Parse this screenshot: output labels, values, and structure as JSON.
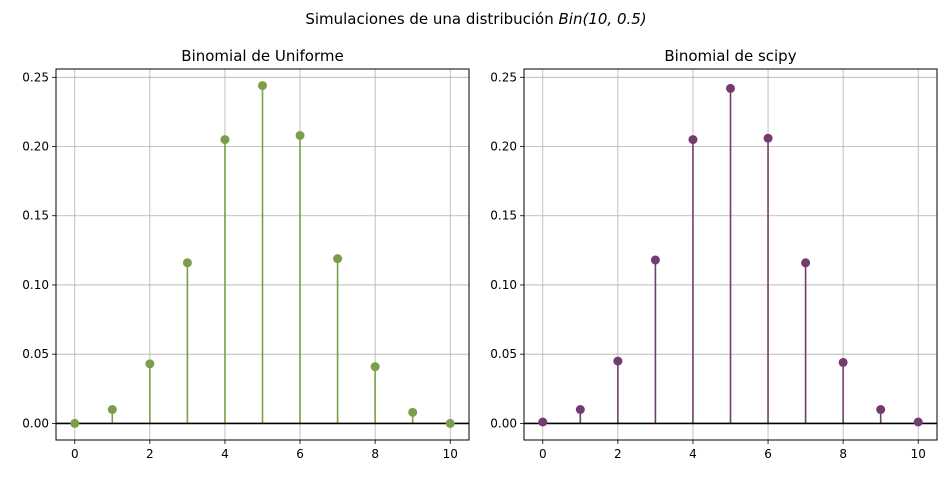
{
  "suptitle": {
    "prefix": "Simulaciones de una distribución ",
    "math": "Bin(10, 0.5)"
  },
  "chart_data": [
    {
      "type": "stem",
      "title": "Binomial de Uniforme",
      "color": "#7a9e4a",
      "x": [
        0,
        1,
        2,
        3,
        4,
        5,
        6,
        7,
        8,
        9,
        10
      ],
      "y": [
        0.0,
        0.01,
        0.043,
        0.116,
        0.205,
        0.244,
        0.208,
        0.119,
        0.041,
        0.008,
        0.0
      ],
      "xlim": [
        -0.5,
        10.5
      ],
      "ylim": [
        -0.012,
        0.256
      ],
      "xticks": [
        0,
        2,
        4,
        6,
        8,
        10
      ],
      "yticks": [
        0.0,
        0.05,
        0.1,
        0.15,
        0.2,
        0.25
      ],
      "ytick_labels": [
        "0.00",
        "0.05",
        "0.10",
        "0.15",
        "0.20",
        "0.25"
      ],
      "grid": true,
      "baseline": 0
    },
    {
      "type": "stem",
      "title": "Binomial de scipy",
      "color": "#723d6e",
      "x": [
        0,
        1,
        2,
        3,
        4,
        5,
        6,
        7,
        8,
        9,
        10
      ],
      "y": [
        0.001,
        0.01,
        0.045,
        0.118,
        0.205,
        0.242,
        0.206,
        0.116,
        0.044,
        0.01,
        0.001
      ],
      "xlim": [
        -0.5,
        10.5
      ],
      "ylim": [
        -0.012,
        0.256
      ],
      "xticks": [
        0,
        2,
        4,
        6,
        8,
        10
      ],
      "yticks": [
        0.0,
        0.05,
        0.1,
        0.15,
        0.2,
        0.25
      ],
      "ytick_labels": [
        "0.00",
        "0.05",
        "0.10",
        "0.15",
        "0.20",
        "0.25"
      ],
      "grid": true,
      "baseline": 0
    }
  ]
}
